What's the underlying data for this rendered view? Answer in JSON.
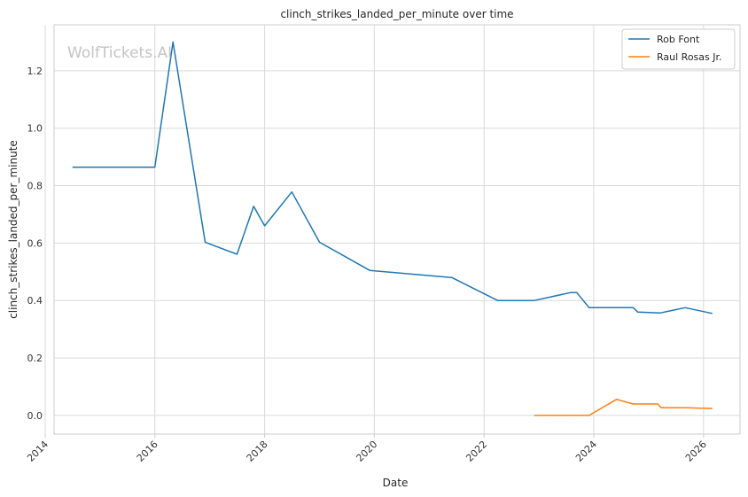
{
  "chart_data": {
    "type": "line",
    "title": "clinch_strikes_landed_per_minute over time",
    "xlabel": "Date",
    "ylabel": "clinch_strikes_landed_per_minute",
    "watermark": "WolfTickets.AI",
    "x_ticks": [
      "2014",
      "2016",
      "2018",
      "2020",
      "2022",
      "2024",
      "2026"
    ],
    "y_ticks": [
      "0.0",
      "0.2",
      "0.4",
      "0.6",
      "0.8",
      "1.0",
      "1.2"
    ],
    "xlim": [
      "2014-03-01",
      "2026-09-01"
    ],
    "ylim": [
      -0.065,
      1.36
    ],
    "grid": true,
    "legend_position": "top-right",
    "series": [
      {
        "name": "Rob Font",
        "color": "#1f77b4",
        "points": [
          [
            "2014-07-01",
            0.864
          ],
          [
            "2016-01-01",
            0.864
          ],
          [
            "2016-05-01",
            1.3
          ],
          [
            "2016-12-01",
            0.603
          ],
          [
            "2017-07-01",
            0.561
          ],
          [
            "2017-10-20",
            0.728
          ],
          [
            "2018-01-01",
            0.66
          ],
          [
            "2018-07-01",
            0.778
          ],
          [
            "2019-01-01",
            0.603
          ],
          [
            "2019-12-01",
            0.505
          ],
          [
            "2021-06-01",
            0.48
          ],
          [
            "2022-04-01",
            0.4
          ],
          [
            "2022-12-01",
            0.4
          ],
          [
            "2023-08-01",
            0.428
          ],
          [
            "2023-09-10",
            0.428
          ],
          [
            "2023-12-01",
            0.375
          ],
          [
            "2024-09-20",
            0.375
          ],
          [
            "2024-10-20",
            0.36
          ],
          [
            "2025-03-20",
            0.357
          ],
          [
            "2025-09-01",
            0.375
          ],
          [
            "2026-03-01",
            0.355
          ]
        ]
      },
      {
        "name": "Raul Rosas Jr.",
        "color": "#ff7f0e",
        "points": [
          [
            "2022-12-01",
            0.0
          ],
          [
            "2023-12-01",
            0.0
          ],
          [
            "2024-06-01",
            0.056
          ],
          [
            "2024-09-20",
            0.04
          ],
          [
            "2025-03-01",
            0.04
          ],
          [
            "2025-03-25",
            0.027
          ],
          [
            "2025-09-01",
            0.027
          ],
          [
            "2026-03-01",
            0.024
          ]
        ]
      }
    ]
  }
}
